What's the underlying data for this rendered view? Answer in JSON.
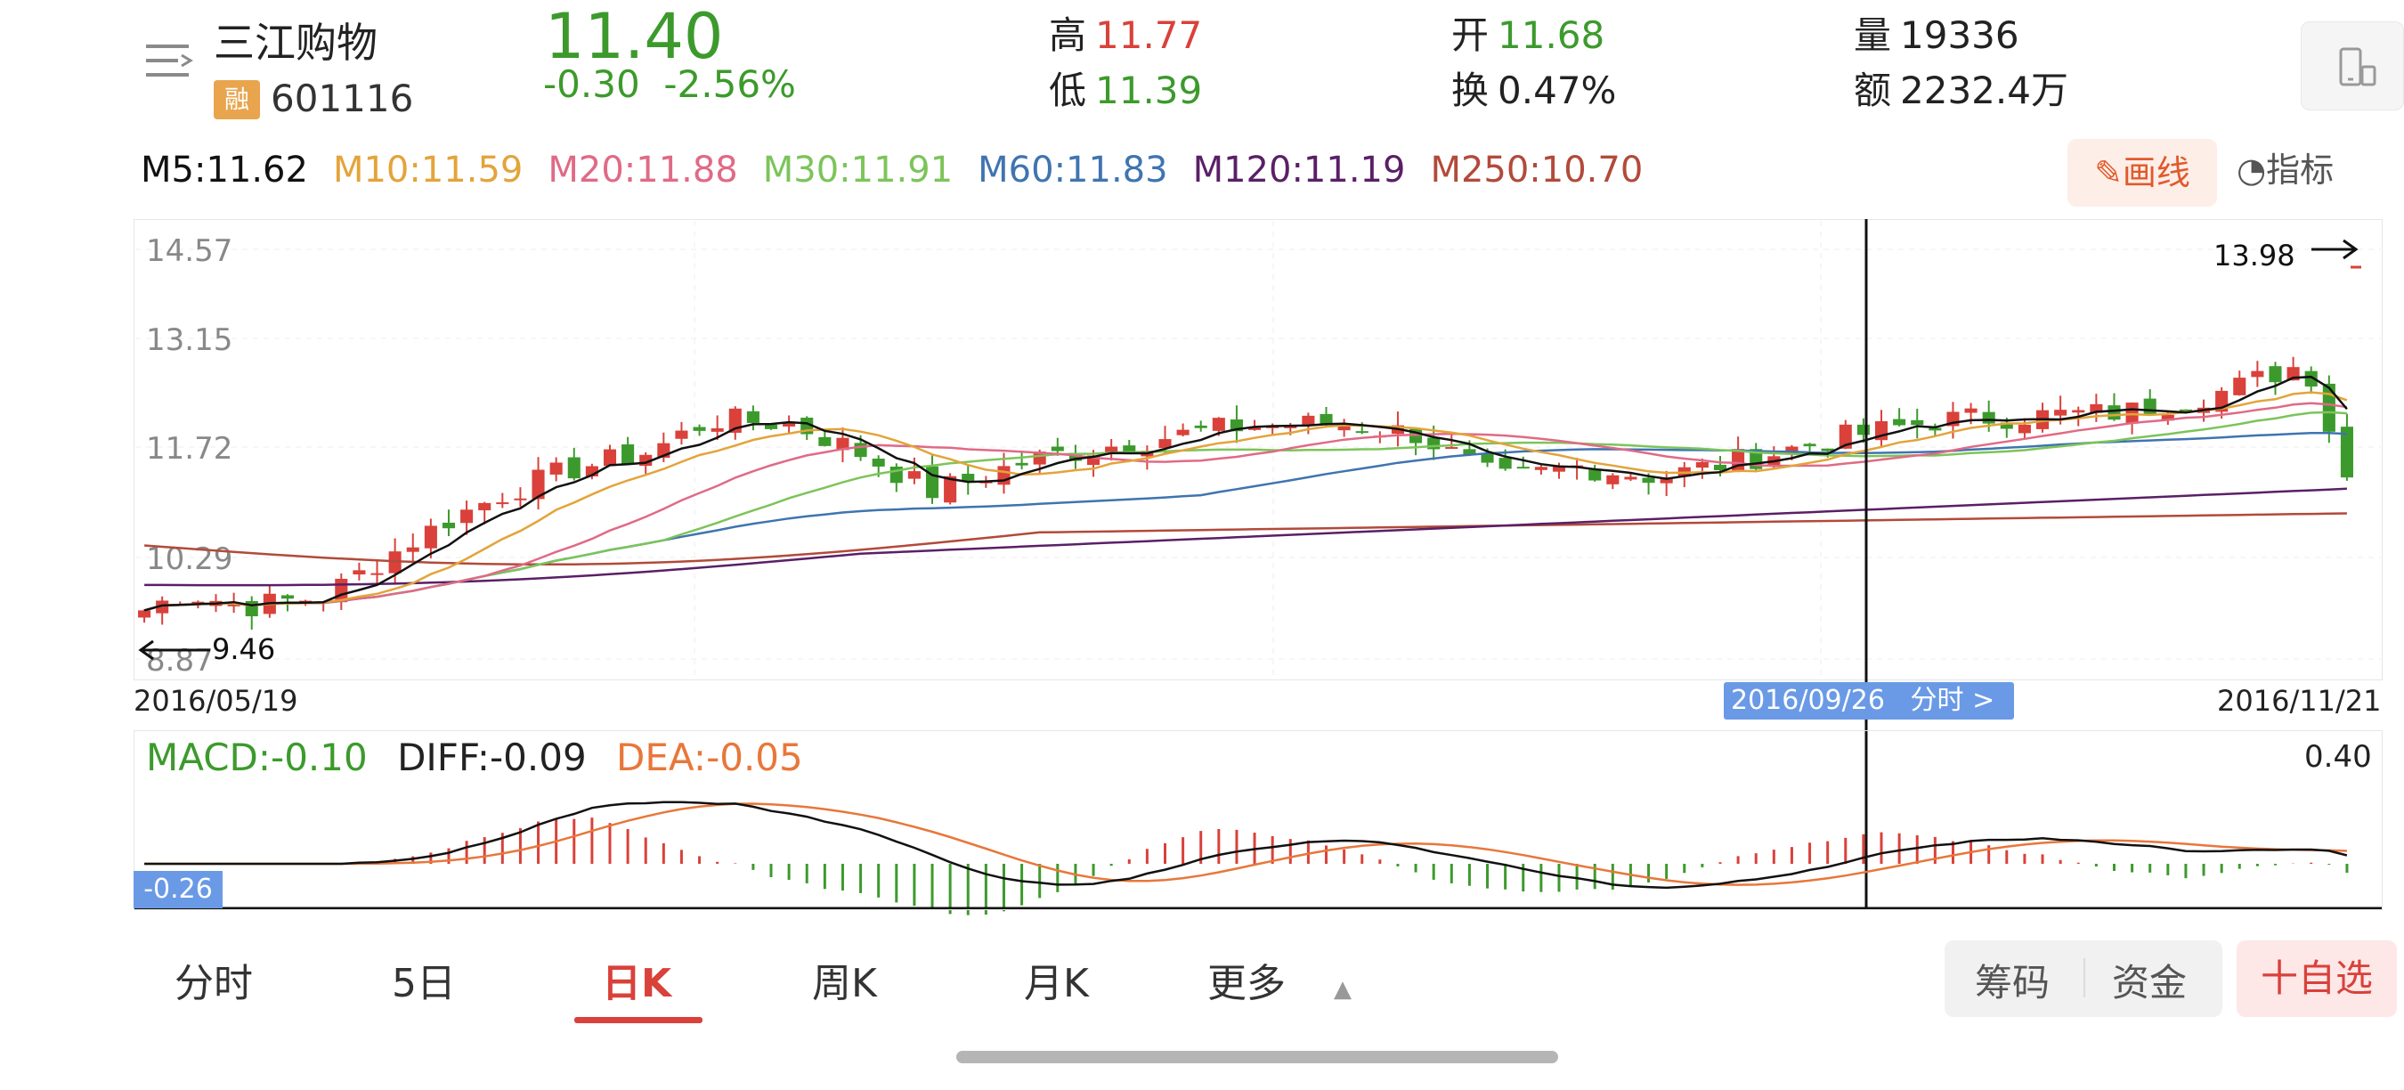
{
  "header": {
    "stock_name": "三江购物",
    "badge": "融",
    "stock_code": "601116",
    "price": "11.40",
    "change": "-0.30",
    "change_pct": "-2.56%",
    "high_label": "高",
    "high_value": "11.77",
    "low_label": "低",
    "low_value": "11.39",
    "open_label": "开",
    "open_value": "11.68",
    "turnover_label": "换",
    "turnover_value": "0.47%",
    "volume_label": "量",
    "volume_value": "19336",
    "amount_label": "额",
    "amount_value": "2232.4万"
  },
  "ma_legend": [
    {
      "label": "M5:11.62",
      "color": "#111111"
    },
    {
      "label": "M10:11.59",
      "color": "#e3a43a"
    },
    {
      "label": "M20:11.88",
      "color": "#e06a86"
    },
    {
      "label": "M30:11.91",
      "color": "#7cc45a"
    },
    {
      "label": "M60:11.83",
      "color": "#3f74b0"
    },
    {
      "label": "M120:11.19",
      "color": "#5a1f66"
    },
    {
      "label": "M250:10.70",
      "color": "#b24a3a"
    }
  ],
  "toolbar": {
    "draw_label": "画线",
    "indicator_label": "指标"
  },
  "chart": {
    "y_labels": [
      "14.57",
      "13.15",
      "11.72",
      "10.29",
      "8.87"
    ],
    "max_marker": "13.98",
    "min_marker": "9.46",
    "date_start": "2016/05/19",
    "date_end": "2016/11/21",
    "cursor_date": "2016/09/26",
    "cursor_link": "分时 >"
  },
  "chart_data": {
    "type": "candlestick",
    "x_start": "2016/05/19",
    "x_end": "2016/11/21",
    "ylim": [
      8.87,
      14.57
    ],
    "y_ticks": [
      14.57,
      13.15,
      11.72,
      10.29,
      8.87
    ],
    "period_high": 13.98,
    "period_low": 9.46,
    "last_close": 11.4,
    "moving_averages": {
      "M5": 11.62,
      "M10": 11.59,
      "M20": 11.88,
      "M30": 11.91,
      "M60": 11.83,
      "M120": 11.19,
      "M250": 10.7
    },
    "macd": {
      "MACD": -0.1,
      "DIFF": -0.09,
      "DEA": -0.05,
      "y_max_label": 0.4,
      "y_min_label": -0.26
    }
  },
  "macd_panel": {
    "macd": "MACD:-0.10",
    "diff": "DIFF:-0.09",
    "dea": "DEA:-0.05",
    "top_label": "0.40",
    "bottom_label": "-0.26"
  },
  "tabs": [
    {
      "label": "分时",
      "active": false
    },
    {
      "label": "5日",
      "active": false
    },
    {
      "label": "日K",
      "active": true
    },
    {
      "label": "周K",
      "active": false
    },
    {
      "label": "月K",
      "active": false
    },
    {
      "label": "更多",
      "active": false
    }
  ],
  "bottom_actions": {
    "chips": "筹码",
    "funds": "资金",
    "add_favorite": "十自选"
  },
  "colors": {
    "up": "#d9413a",
    "down": "#3c9a2c",
    "accent": "#6a9ae6"
  }
}
